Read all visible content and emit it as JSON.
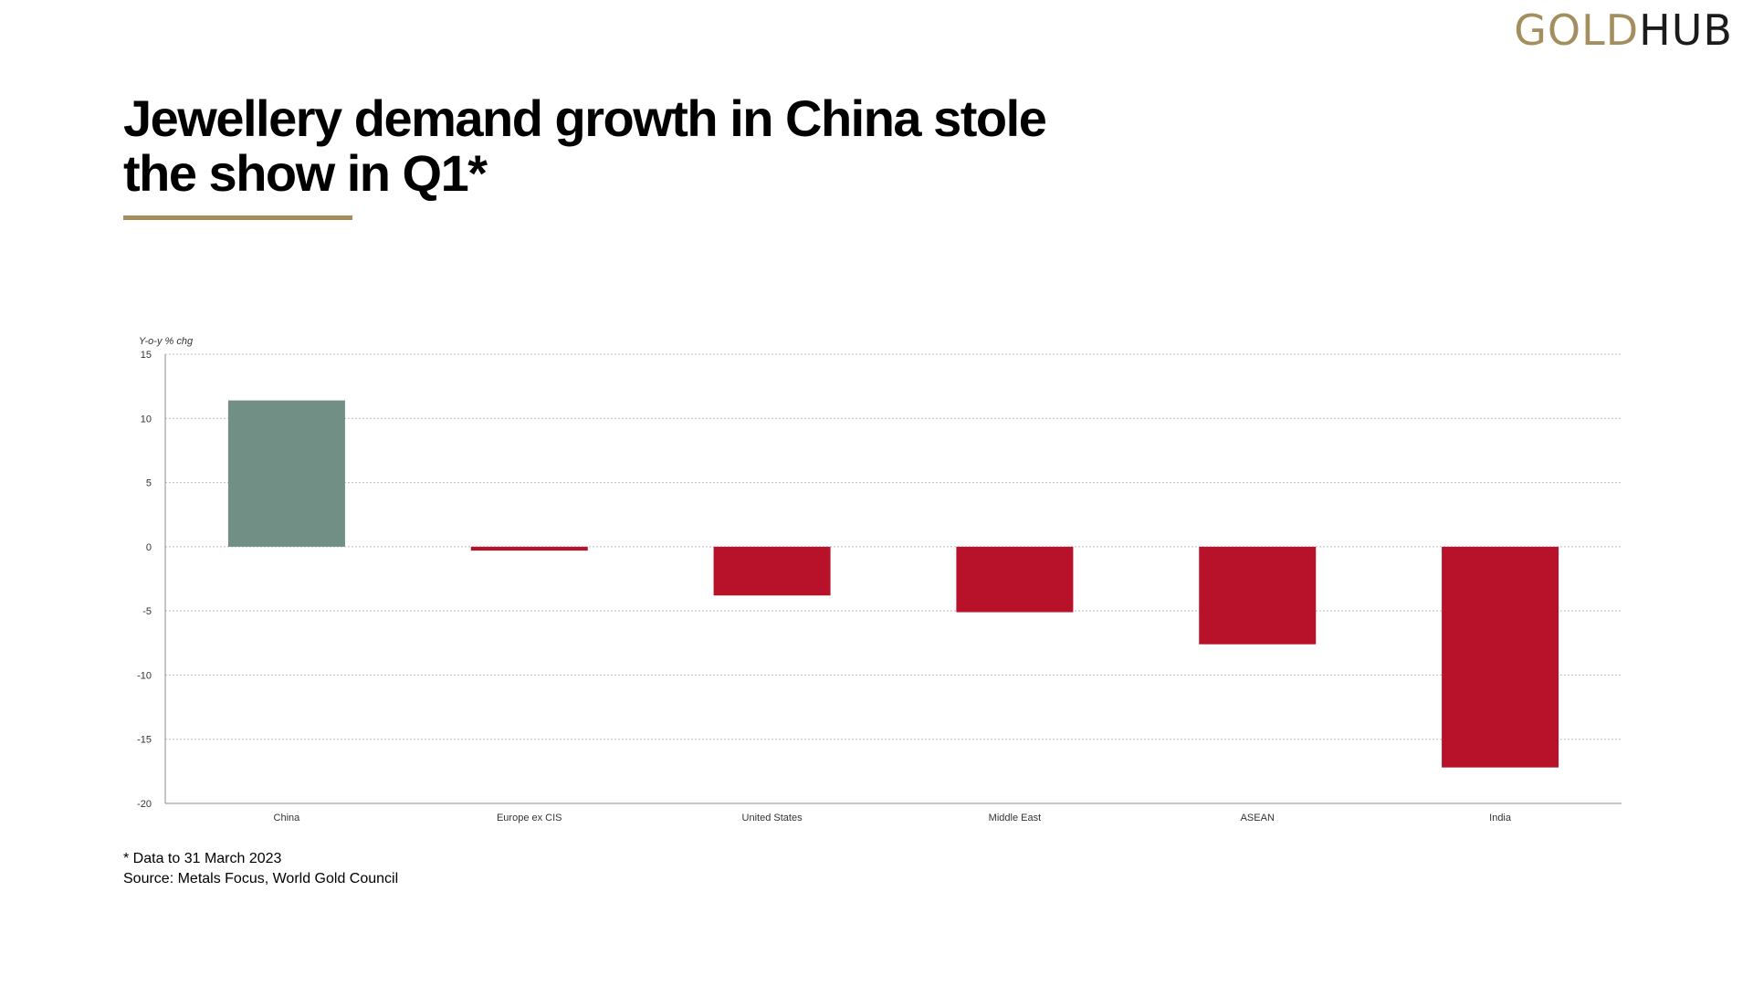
{
  "brand": {
    "logo_part1": "GOLD",
    "logo_part2": "HUB"
  },
  "colors": {
    "brand_gold": "#a48e5e",
    "positive": "#718f84",
    "negative": "#b8122b"
  },
  "chart_data": {
    "type": "bar",
    "title_lines": [
      "Jewellery demand growth in China stole",
      "the show in Q1*"
    ],
    "ylabel": "Y-o-y % chg",
    "ylim": [
      -20,
      15
    ],
    "yticks": [
      15,
      10,
      5,
      0,
      -5,
      -10,
      -15,
      -20
    ],
    "grid": true,
    "legend": "none",
    "categories": [
      "China",
      "Europe ex CIS",
      "United States",
      "Middle East",
      "ASEAN",
      "India"
    ],
    "values": [
      11.4,
      -0.3,
      -3.8,
      -5.1,
      -7.6,
      -17.2
    ]
  },
  "footnotes": {
    "note": "* Data to 31 March 2023",
    "source": "Source: Metals Focus, World Gold Council"
  }
}
